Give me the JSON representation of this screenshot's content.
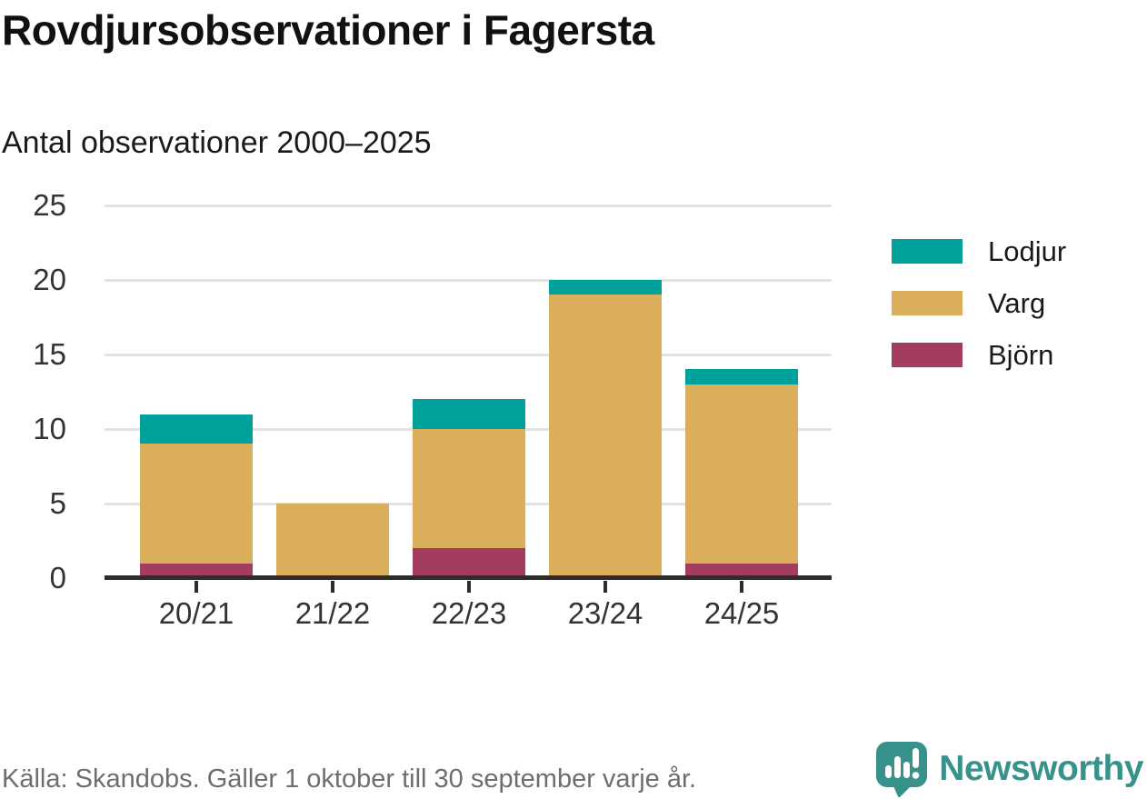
{
  "header": {
    "title": "Rovdjursobservationer i Fagersta",
    "subtitle": "Antal observationer 2000–2025"
  },
  "chart_data": {
    "type": "bar",
    "stacked": true,
    "title": "Rovdjursobservationer i Fagersta",
    "subtitle": "Antal observationer 2000–2025",
    "categories": [
      "20/21",
      "21/22",
      "22/23",
      "23/24",
      "24/25"
    ],
    "series": [
      {
        "name": "Lodjur",
        "color": "#00a19a",
        "values": [
          2,
          0,
          2,
          1,
          1
        ]
      },
      {
        "name": "Varg",
        "color": "#dbae5c",
        "values": [
          8,
          5,
          8,
          19,
          12
        ]
      },
      {
        "name": "Björn",
        "color": "#a33c60",
        "values": [
          1,
          0,
          2,
          0,
          1
        ]
      }
    ],
    "stack_order_bottom_to_top": [
      "Björn",
      "Varg",
      "Lodjur"
    ],
    "totals": [
      11,
      5,
      12,
      20,
      14
    ],
    "yticks": [
      0,
      5,
      10,
      15,
      20,
      25
    ],
    "ylim": [
      0,
      25
    ],
    "xlabel": "",
    "ylabel": "",
    "grid": "horizontal",
    "legend_position": "right"
  },
  "colors": {
    "grid": "#e3e3e3",
    "axis": "#2d2d2d",
    "tick_text": "#333333",
    "muted_text": "#6e6e6e",
    "brand_teal": "#38928c"
  },
  "footer": {
    "source_note": "Källa: Skandobs. Gäller 1 oktober till 30 september varje år.",
    "brand": "Newsworthy",
    "brand_icon": "newsworthy-speech-bubble-chart-icon"
  }
}
